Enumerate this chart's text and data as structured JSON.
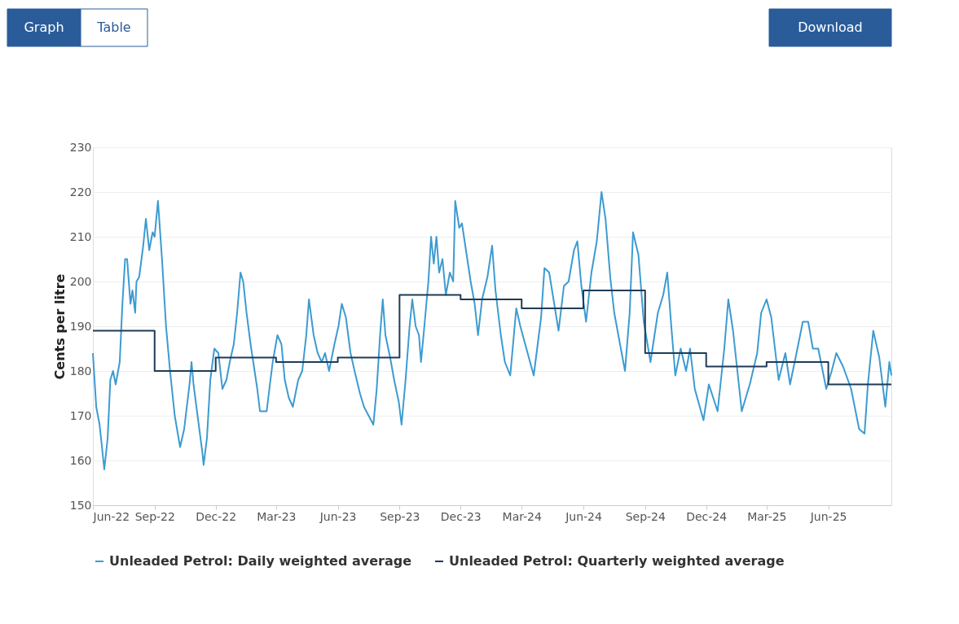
{
  "chart_data": {
    "type": "line",
    "ylabel": "Cents per litre",
    "annotations": [
      "Graph",
      "Table",
      "Download"
    ],
    "xlim": [
      "2022-06-01",
      "2025-09-03"
    ],
    "xticks": [
      {
        "value": "2022-06-01",
        "label": "Jun-22"
      },
      {
        "value": "2022-09-01",
        "label": "Sep-22"
      },
      {
        "value": "2022-12-01",
        "label": "Dec-22"
      },
      {
        "value": "2023-03-01",
        "label": "Mar-23"
      },
      {
        "value": "2023-06-01",
        "label": "Jun-23"
      },
      {
        "value": "2023-09-01",
        "label": "Sep-23"
      },
      {
        "value": "2023-12-01",
        "label": "Dec-23"
      },
      {
        "value": "2024-03-01",
        "label": "Mar-24"
      },
      {
        "value": "2024-06-01",
        "label": "Jun-24"
      },
      {
        "value": "2024-09-01",
        "label": "Sep-24"
      },
      {
        "value": "2024-12-01",
        "label": "Dec-24"
      },
      {
        "value": "2025-03-01",
        "label": "Mar-25"
      },
      {
        "value": "2025-06-01",
        "label": "Jun-25"
      }
    ],
    "ylim": [
      150,
      230
    ],
    "yticks": [
      150,
      160,
      170,
      180,
      190,
      200,
      210,
      220,
      230
    ],
    "grid": "y",
    "legend": "bottom",
    "line_style": "solid",
    "marker": "none",
    "series": [
      {
        "name": "Unleaded Petrol: Daily weighted average",
        "color": "#3d9bd1",
        "x": [
          "2022-06-01",
          "2022-06-06",
          "2022-06-11",
          "2022-06-18",
          "2022-06-23",
          "2022-06-27",
          "2022-07-01",
          "2022-07-05",
          "2022-07-11",
          "2022-07-15",
          "2022-07-19",
          "2022-07-22",
          "2022-07-27",
          "2022-07-30",
          "2022-08-03",
          "2022-08-05",
          "2022-08-09",
          "2022-08-15",
          "2022-08-19",
          "2022-08-24",
          "2022-08-29",
          "2022-09-01",
          "2022-09-06",
          "2022-09-12",
          "2022-09-18",
          "2022-09-24",
          "2022-10-01",
          "2022-10-09",
          "2022-10-15",
          "2022-10-23",
          "2022-10-26",
          "2022-10-29",
          "2022-11-04",
          "2022-11-11",
          "2022-11-13",
          "2022-11-18",
          "2022-11-23",
          "2022-11-29",
          "2022-12-05",
          "2022-12-11",
          "2022-12-17",
          "2022-12-22",
          "2022-12-28",
          "2023-01-02",
          "2023-01-07",
          "2023-01-11",
          "2023-01-16",
          "2023-01-22",
          "2023-01-26",
          "2023-02-01",
          "2023-02-05",
          "2023-02-15",
          "2023-02-19",
          "2023-02-24",
          "2023-03-03",
          "2023-03-09",
          "2023-03-14",
          "2023-03-20",
          "2023-03-26",
          "2023-04-03",
          "2023-04-09",
          "2023-04-15",
          "2023-04-19",
          "2023-04-26",
          "2023-05-02",
          "2023-05-08",
          "2023-05-13",
          "2023-05-19",
          "2023-05-27",
          "2023-06-02",
          "2023-06-07",
          "2023-06-13",
          "2023-06-20",
          "2023-06-26",
          "2023-07-04",
          "2023-07-10",
          "2023-07-24",
          "2023-07-29",
          "2023-08-03",
          "2023-08-07",
          "2023-08-11",
          "2023-08-18",
          "2023-08-24",
          "2023-08-31",
          "2023-09-04",
          "2023-09-10",
          "2023-09-16",
          "2023-09-20",
          "2023-09-25",
          "2023-09-30",
          "2023-10-03",
          "2023-10-08",
          "2023-10-14",
          "2023-10-18",
          "2023-10-22",
          "2023-10-26",
          "2023-10-30",
          "2023-11-04",
          "2023-11-09",
          "2023-11-15",
          "2023-11-20",
          "2023-11-23",
          "2023-11-29",
          "2023-12-03",
          "2023-12-09",
          "2023-12-16",
          "2023-12-22",
          "2023-12-27",
          "2024-01-02",
          "2024-01-10",
          "2024-01-17",
          "2024-01-22",
          "2024-01-30",
          "2024-02-05",
          "2024-02-13",
          "2024-02-22",
          "2024-02-28",
          "2024-03-19",
          "2024-03-30",
          "2024-04-04",
          "2024-04-11",
          "2024-04-25",
          "2024-05-03",
          "2024-05-10",
          "2024-05-18",
          "2024-05-23",
          "2024-05-29",
          "2024-06-05",
          "2024-06-13",
          "2024-06-21",
          "2024-06-28",
          "2024-07-04",
          "2024-07-11",
          "2024-07-17",
          "2024-08-02",
          "2024-08-09",
          "2024-08-14",
          "2024-08-22",
          "2024-08-30",
          "2024-09-09",
          "2024-09-20",
          "2024-09-28",
          "2024-10-04",
          "2024-10-10",
          "2024-10-16",
          "2024-10-24",
          "2024-11-01",
          "2024-11-07",
          "2024-11-14",
          "2024-11-27",
          "2024-12-05",
          "2024-12-18",
          "2024-12-28",
          "2025-01-03",
          "2025-01-10",
          "2025-01-23",
          "2025-02-04",
          "2025-02-15",
          "2025-02-21",
          "2025-03-01",
          "2025-03-08",
          "2025-03-19",
          "2025-03-29",
          "2025-04-05",
          "2025-04-16",
          "2025-04-24",
          "2025-05-02",
          "2025-05-09",
          "2025-05-17",
          "2025-05-29",
          "2025-06-06",
          "2025-06-13",
          "2025-06-23",
          "2025-07-05",
          "2025-07-17",
          "2025-07-25",
          "2025-07-30",
          "2025-08-07",
          "2025-08-16",
          "2025-08-25",
          "2025-08-31",
          "2025-09-03"
        ],
        "values": [
          184,
          172,
          168,
          158,
          165,
          178,
          180,
          177,
          182,
          195,
          205,
          205,
          195,
          198,
          193,
          200,
          201,
          208,
          214,
          207,
          211,
          210,
          218,
          205,
          190,
          180,
          170,
          163,
          167,
          177,
          182,
          177,
          170,
          162,
          159,
          165,
          178,
          185,
          184,
          176,
          178,
          182,
          186,
          193,
          202,
          200,
          193,
          186,
          182,
          176,
          171,
          171,
          176,
          182,
          188,
          186,
          178,
          174,
          172,
          178,
          180,
          188,
          196,
          188,
          184,
          182,
          184,
          180,
          186,
          190,
          195,
          192,
          184,
          180,
          175,
          172,
          168,
          176,
          188,
          196,
          188,
          183,
          178,
          173,
          168,
          178,
          190,
          196,
          190,
          188,
          182,
          190,
          200,
          210,
          204,
          210,
          202,
          205,
          197,
          202,
          200,
          218,
          212,
          213,
          207,
          200,
          195,
          188,
          196,
          201,
          208,
          198,
          188,
          182,
          179,
          194,
          190,
          179,
          192,
          203,
          202,
          189,
          199,
          200,
          207,
          209,
          199,
          191,
          202,
          209,
          220,
          214,
          201,
          193,
          180,
          193,
          211,
          206,
          191,
          182,
          193,
          197,
          202,
          190,
          179,
          185,
          180,
          185,
          176,
          169,
          177,
          171,
          185,
          196,
          189,
          171,
          177,
          184,
          193,
          196,
          192,
          178,
          184,
          177,
          185,
          191,
          191,
          185,
          185,
          176,
          180,
          184,
          181,
          176,
          167,
          166,
          177,
          189,
          183,
          172,
          182,
          179
        ]
      },
      {
        "name": "Unleaded Petrol: Quarterly weighted average",
        "color": "#1f3b57",
        "type": "step",
        "x": [
          "2022-06-01",
          "2022-09-01",
          "2022-12-01",
          "2023-03-01",
          "2023-06-01",
          "2023-09-01",
          "2023-12-01",
          "2024-03-01",
          "2024-06-01",
          "2024-09-01",
          "2024-12-01",
          "2025-03-01",
          "2025-06-01",
          "2025-09-03"
        ],
        "values": [
          189,
          180,
          183,
          182,
          183,
          197,
          196,
          194,
          198,
          184,
          181,
          182,
          177,
          177
        ]
      }
    ]
  }
}
